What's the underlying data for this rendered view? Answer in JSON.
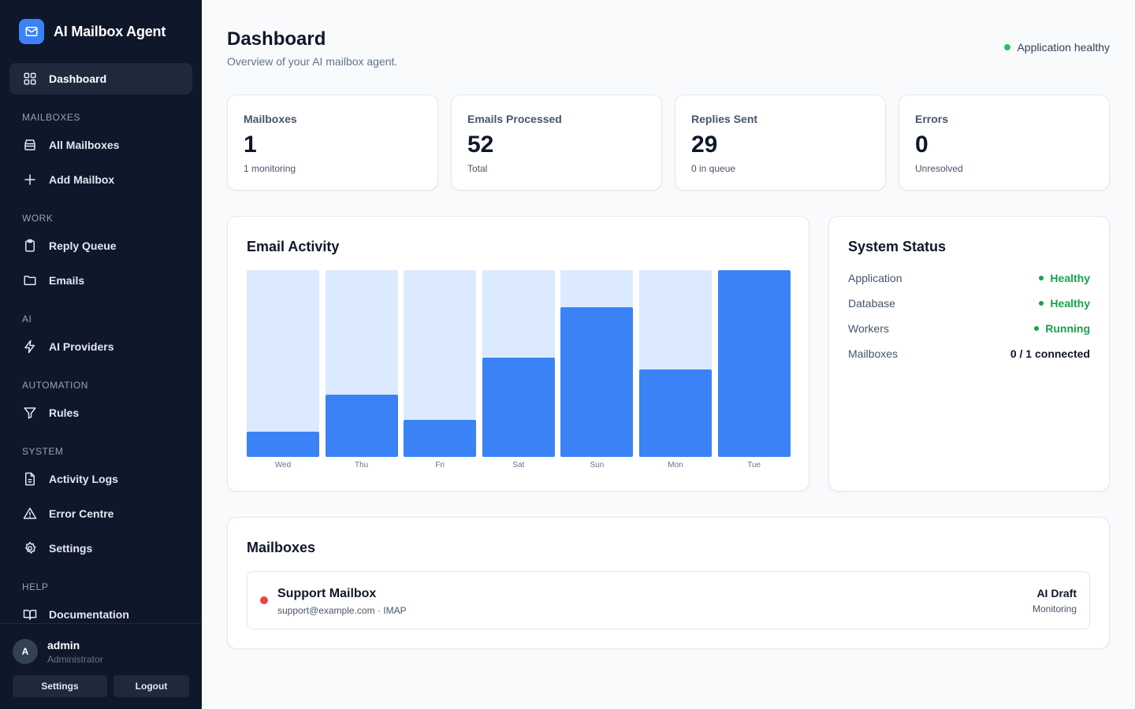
{
  "app": {
    "title": "AI Mailbox Agent",
    "brand_color": "#3b82f6"
  },
  "sidebar": {
    "active": "Dashboard",
    "items": [
      {
        "label": "Dashboard",
        "icon": "grid-icon"
      },
      {
        "label": "All Mailboxes",
        "icon": "inbox-icon"
      },
      {
        "label": "Add Mailbox",
        "icon": "plus-icon"
      },
      {
        "label": "Reply Queue",
        "icon": "clipboard-icon"
      },
      {
        "label": "Emails",
        "icon": "folder-icon"
      },
      {
        "label": "AI Providers",
        "icon": "lightning-icon"
      },
      {
        "label": "Rules",
        "icon": "filter-icon"
      },
      {
        "label": "Activity Logs",
        "icon": "file-text-icon"
      },
      {
        "label": "Error Centre",
        "icon": "warning-icon"
      },
      {
        "label": "Settings",
        "icon": "gear-icon"
      },
      {
        "label": "Documentation",
        "icon": "book-icon"
      }
    ],
    "sections": [
      "MAILBOXES",
      "WORK",
      "AI",
      "AUTOMATION",
      "SYSTEM",
      "HELP"
    ],
    "user": {
      "initial": "A",
      "name": "admin",
      "role": "Administrator"
    },
    "footer_buttons": {
      "settings": "Settings",
      "logout": "Logout"
    }
  },
  "header": {
    "title": "Dashboard",
    "subtitle": "Overview of your AI mailbox agent.",
    "health_text": "Application healthy",
    "health_color": "#22c55e"
  },
  "stats": [
    {
      "label": "Mailboxes",
      "value": "1",
      "sub": "1 monitoring"
    },
    {
      "label": "Emails Processed",
      "value": "52",
      "sub": "Total"
    },
    {
      "label": "Replies Sent",
      "value": "29",
      "sub": "0 in queue"
    },
    {
      "label": "Errors",
      "value": "0",
      "sub": "Unresolved"
    }
  ],
  "activity": {
    "title": "Email Activity"
  },
  "chart_data": {
    "type": "bar",
    "categories": [
      "Wed",
      "Thu",
      "Fri",
      "Sat",
      "Sun",
      "Mon",
      "Tue"
    ],
    "values": [
      2,
      5,
      3,
      8,
      12,
      7,
      15
    ],
    "ylim": [
      0,
      15
    ],
    "bar_color": "#3b82f6",
    "track_color": "#dbeafe",
    "grid": false
  },
  "system_status": {
    "title": "System Status",
    "rows": [
      {
        "name": "Application",
        "value": "Healthy",
        "color": "#16a34a",
        "dot": true
      },
      {
        "name": "Database",
        "value": "Healthy",
        "color": "#16a34a",
        "dot": true
      },
      {
        "name": "Workers",
        "value": "Running",
        "color": "#16a34a",
        "dot": true
      },
      {
        "name": "Mailboxes",
        "value": "0 / 1 connected",
        "color": "#0f172a",
        "dot": false
      }
    ]
  },
  "mailboxes": {
    "title": "Mailboxes",
    "items": [
      {
        "name": "Support Mailbox",
        "meta": "support@example.com · IMAP",
        "mode": "AI Draft",
        "state": "Monitoring",
        "status_color": "#ef4444"
      }
    ]
  }
}
